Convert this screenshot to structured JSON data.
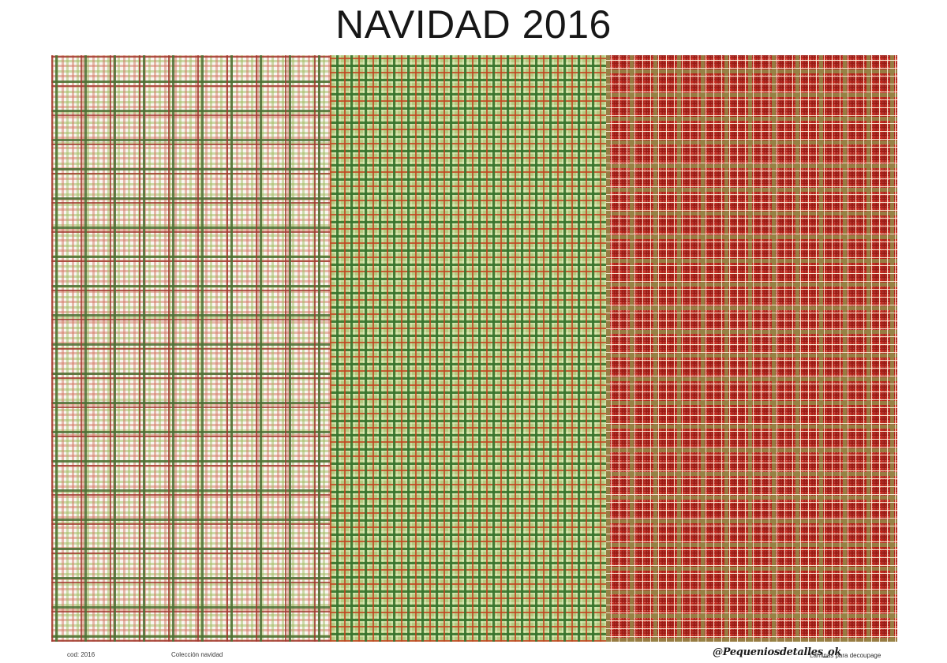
{
  "page": {
    "title": "NAVIDAD 2016"
  },
  "patterns": {
    "panels": [
      {
        "name": "white-red-green-plaid",
        "base_color": "#f9f6f0"
      },
      {
        "name": "green-red-plaid",
        "base_color": "#b3ca81"
      },
      {
        "name": "red-olive-cream-plaid",
        "base_color": "#c5281d"
      }
    ]
  },
  "footer": {
    "code": "cod: 2016",
    "collection": "Colección navidad",
    "handle": "@Pequeniosdetalles_ok",
    "tagline": "Láminas para decoupage"
  },
  "colors": {
    "title_text": "#171717",
    "white_plaid_bold_red": "#a03c30",
    "white_plaid_bold_green": "#4f6e32",
    "white_plaid_fine_red": "#d27864",
    "white_plaid_fine_green": "#a0b95f",
    "green_plaid_red": "#be4620",
    "green_plaid_dark_green": "#37732d",
    "red_plaid_base": "#c5281d",
    "red_plaid_dark_square": "#9e1f15",
    "red_plaid_olive_band": "#96854a",
    "red_plaid_cream_line": "#fff6e0"
  }
}
